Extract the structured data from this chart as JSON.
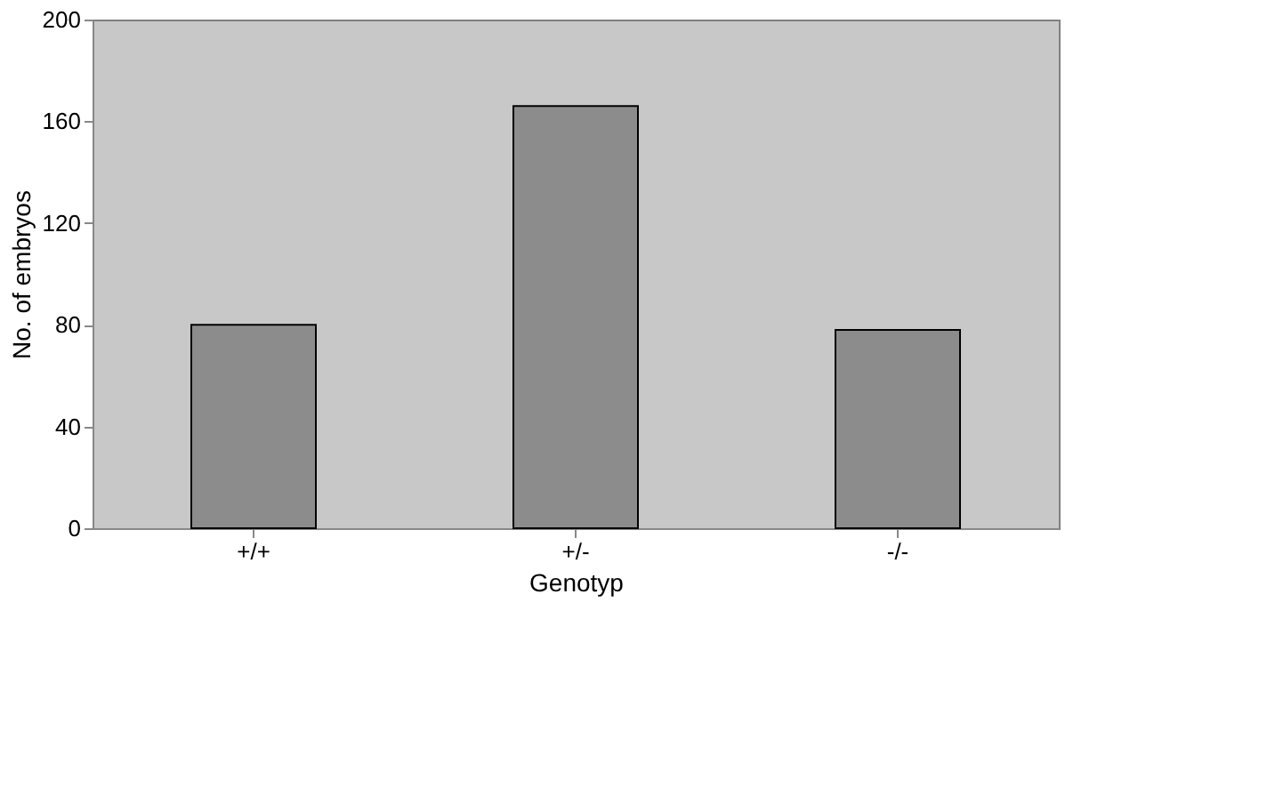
{
  "chart_data": {
    "type": "bar",
    "xlabel": "Genotyp",
    "ylabel": "No. of embryos",
    "categories": [
      "+/+",
      "+/-",
      "-/-"
    ],
    "values": [
      80,
      166,
      78
    ],
    "color": "#8c8c8c",
    "ylim": [
      0,
      200
    ],
    "yticks": [
      0,
      40,
      80,
      120,
      160,
      200
    ],
    "grid": false
  }
}
